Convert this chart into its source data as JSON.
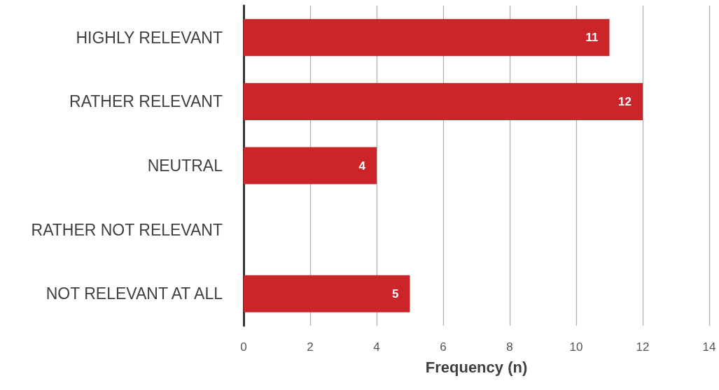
{
  "chart_data": {
    "type": "bar",
    "orientation": "horizontal",
    "xlabel": "Frequency (n)",
    "categories": [
      "HIGHLY RELEVANT",
      "RATHER RELEVANT",
      "NEUTRAL",
      "RATHER NOT RELEVANT",
      "NOT RELEVANT AT ALL"
    ],
    "values": [
      11,
      12,
      4,
      0,
      5
    ],
    "value_labels": [
      "11",
      "12",
      "4",
      null,
      "5"
    ],
    "color": "#cc2529",
    "xlim": [
      0,
      14
    ],
    "xticks": [
      0,
      2,
      4,
      6,
      8,
      10,
      12,
      14
    ],
    "grid": "x"
  }
}
